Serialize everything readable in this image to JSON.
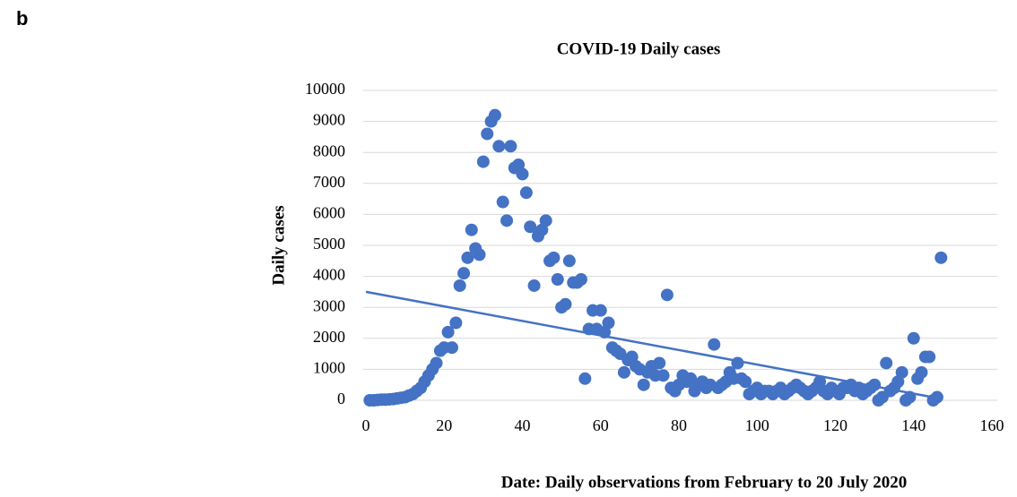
{
  "panel_label": "b",
  "chart_data": {
    "type": "scatter",
    "title": "COVID-19 Daily cases",
    "x_label": "Date: Daily observations from February to 20 July 2020",
    "y_label": "Daily cases",
    "x": [
      1,
      2,
      3,
      4,
      5,
      6,
      7,
      8,
      9,
      10,
      11,
      12,
      13,
      14,
      15,
      16,
      17,
      18,
      19,
      20,
      21,
      22,
      23,
      24,
      25,
      26,
      27,
      28,
      29,
      30,
      31,
      32,
      33,
      34,
      35,
      36,
      37,
      38,
      39,
      40,
      41,
      42,
      43,
      44,
      45,
      46,
      47,
      48,
      49,
      50,
      51,
      52,
      53,
      54,
      55,
      56,
      57,
      58,
      59,
      60,
      61,
      62,
      63,
      64,
      65,
      66,
      67,
      68,
      69,
      70,
      71,
      72,
      73,
      74,
      75,
      76,
      77,
      78,
      79,
      80,
      81,
      82,
      83,
      84,
      85,
      86,
      87,
      88,
      89,
      90,
      91,
      92,
      93,
      94,
      95,
      96,
      97,
      98,
      99,
      100,
      101,
      102,
      103,
      104,
      105,
      106,
      107,
      108,
      109,
      110,
      111,
      112,
      113,
      114,
      115,
      116,
      117,
      118,
      119,
      120,
      121,
      122,
      123,
      124,
      125,
      126,
      127,
      128,
      129,
      130,
      131,
      132,
      133,
      134,
      135,
      136,
      137,
      138,
      139,
      140,
      141,
      142,
      143,
      144,
      145,
      146,
      147
    ],
    "values": [
      0,
      0,
      10,
      20,
      20,
      30,
      40,
      60,
      80,
      100,
      150,
      200,
      300,
      400,
      600,
      800,
      1000,
      1200,
      1600,
      1700,
      2200,
      1700,
      2500,
      3700,
      4100,
      4600,
      5500,
      4900,
      4700,
      7700,
      8600,
      9000,
      9200,
      8200,
      6400,
      5800,
      8200,
      7500,
      7600,
      7300,
      6700,
      5600,
      3700,
      5300,
      5500,
      5800,
      4500,
      4600,
      3900,
      3000,
      3100,
      4500,
      3800,
      3800,
      3900,
      700,
      2300,
      2900,
      2300,
      2900,
      2200,
      2500,
      1700,
      1600,
      1500,
      900,
      1300,
      1400,
      1100,
      1000,
      500,
      900,
      1100,
      800,
      1200,
      800,
      3400,
      400,
      300,
      500,
      800,
      600,
      700,
      300,
      500,
      600,
      400,
      500,
      1800,
      400,
      500,
      600,
      900,
      700,
      1200,
      700,
      600,
      200,
      300,
      400,
      200,
      300,
      300,
      200,
      300,
      400,
      200,
      300,
      400,
      500,
      400,
      300,
      200,
      300,
      400,
      600,
      300,
      200,
      400,
      300,
      200,
      400,
      400,
      500,
      300,
      400,
      200,
      300,
      400,
      500,
      0,
      100,
      1200,
      300,
      400,
      600,
      900,
      0,
      100,
      2000,
      700,
      900,
      1400,
      1400,
      0,
      100,
      4600
    ],
    "color": "#4472c4",
    "trendline": {
      "x": [
        0,
        147
      ],
      "values": [
        3500,
        50
      ]
    },
    "xlim": [
      0,
      160
    ],
    "xticks": [
      0,
      20,
      40,
      60,
      80,
      100,
      120,
      140,
      160
    ],
    "ylim": [
      0,
      10000
    ],
    "yticks": [
      0,
      1000,
      2000,
      3000,
      4000,
      5000,
      6000,
      7000,
      8000,
      9000,
      10000
    ],
    "grid": true
  }
}
